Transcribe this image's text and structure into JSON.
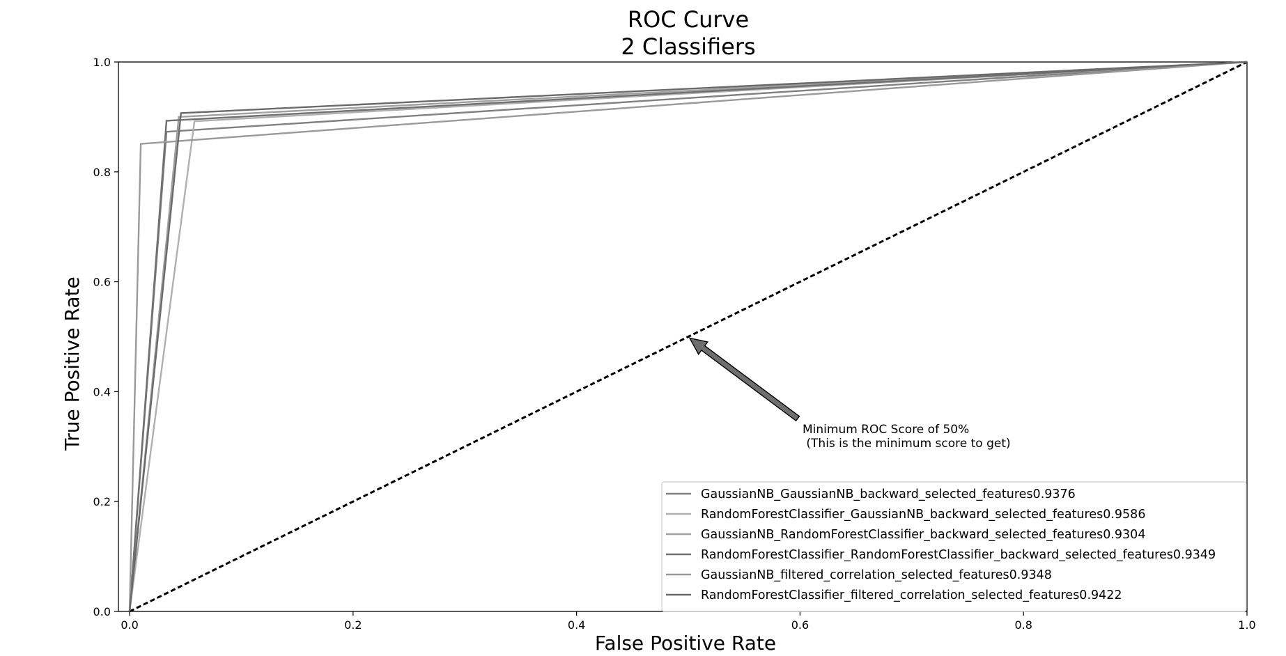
{
  "chart_data": {
    "type": "line",
    "title": "ROC Curve",
    "subtitle": "2 Classifiers",
    "xlabel": "False Positive Rate",
    "ylabel": "True Positive Rate",
    "xlim": [
      -0.01,
      1.0
    ],
    "ylim": [
      0.0,
      1.0
    ],
    "xticks": [
      "0.0",
      "0.2",
      "0.4",
      "0.6",
      "0.8",
      "1.0"
    ],
    "yticks": [
      "0.0",
      "0.2",
      "0.4",
      "0.6",
      "0.8",
      "1.0"
    ],
    "grid": false,
    "legend_position": "lower-right",
    "series": [
      {
        "name": "GaussianNB_GaussianNB_backward_selected_features0.9376",
        "color": "#808080",
        "x": [
          0.0,
          0.033,
          1.0
        ],
        "y": [
          0.0,
          0.873,
          1.0
        ]
      },
      {
        "name": "RandomForestClassifier_GaussianNB_backward_selected_features0.9586",
        "color": "#b0b0b0",
        "x": [
          0.0,
          0.058,
          1.0
        ],
        "y": [
          0.0,
          0.892,
          1.0
        ]
      },
      {
        "name": "GaussianNB_RandomForestClassifier_backward_selected_features0.9304",
        "color": "#a0a0a0",
        "x": [
          0.0,
          0.044,
          1.0
        ],
        "y": [
          0.0,
          0.9,
          1.0
        ]
      },
      {
        "name": "RandomForestClassifier_RandomForestClassifier_backward_selected_features0.9349",
        "color": "#707070",
        "x": [
          0.0,
          0.033,
          1.0
        ],
        "y": [
          0.0,
          0.893,
          1.0
        ]
      },
      {
        "name": "GaussianNB_filtered_correlation_selected_features0.9348",
        "color": "#9a9a9a",
        "x": [
          0.0,
          0.01,
          1.0
        ],
        "y": [
          0.0,
          0.851,
          1.0
        ]
      },
      {
        "name": "RandomForestClassifier_filtered_correlation_selected_features0.9422",
        "color": "#6a6a6a",
        "x": [
          0.0,
          0.046,
          1.0
        ],
        "y": [
          0.0,
          0.907,
          1.0
        ]
      }
    ],
    "baseline": {
      "x": [
        0.0,
        1.0
      ],
      "y": [
        0.0,
        1.0
      ],
      "style": "dashed"
    },
    "annotation": {
      "text_lines": [
        "Minimum ROC Score of 50%",
        " (This is the minimum score to get)"
      ],
      "point": [
        0.5,
        0.5
      ],
      "text_at": [
        0.6,
        0.33
      ]
    }
  }
}
